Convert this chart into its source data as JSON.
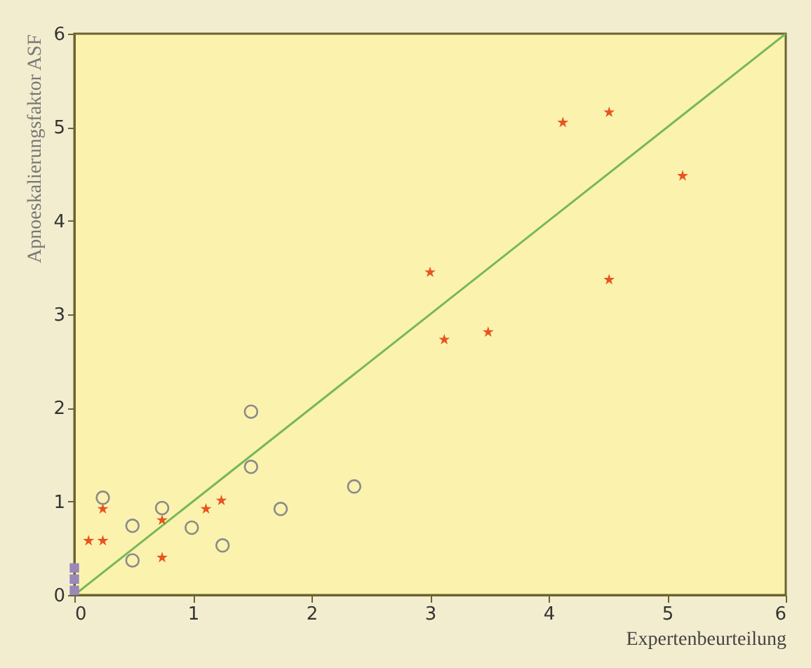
{
  "chart_data": {
    "type": "scatter",
    "xlabel": "Expertenbeurteilung",
    "ylabel": "Apnoeskalierungsfaktor ASF",
    "xlim": [
      0,
      6
    ],
    "ylim": [
      0,
      6
    ],
    "xticks": [
      0,
      1,
      2,
      3,
      4,
      5,
      6
    ],
    "yticks": [
      0,
      1,
      2,
      3,
      4,
      5,
      6
    ],
    "grid": false,
    "series": [
      {
        "type": "line",
        "color": "#78b85a",
        "line_style": "solid",
        "x": [
          0,
          6
        ],
        "values": [
          0,
          6
        ]
      },
      {
        "type": "scatter",
        "color": "#e8541e",
        "marker": "star",
        "x": [
          3.0,
          3.12,
          3.49,
          4.12,
          4.51,
          5.13,
          4.51,
          0.24,
          0.12,
          0.24,
          0.74,
          0.74,
          1.11,
          1.24
        ],
        "values": [
          3.45,
          2.73,
          2.81,
          5.05,
          5.16,
          4.48,
          3.37,
          0.92,
          0.58,
          0.58,
          0.8,
          0.4,
          0.92,
          1.01
        ]
      },
      {
        "type": "scatter",
        "color": "#8a8a8a",
        "marker": "circle",
        "x": [
          0.24,
          0.49,
          0.49,
          0.74,
          0.99,
          1.25,
          1.49,
          1.49,
          1.74,
          2.36
        ],
        "values": [
          1.04,
          0.74,
          0.37,
          0.93,
          0.72,
          0.53,
          1.96,
          1.37,
          0.92,
          1.16
        ]
      },
      {
        "type": "scatter",
        "color": "#9a88b8",
        "marker": "square",
        "x": [
          0,
          0,
          0
        ],
        "values": [
          0.05,
          0.17,
          0.29
        ]
      }
    ]
  }
}
